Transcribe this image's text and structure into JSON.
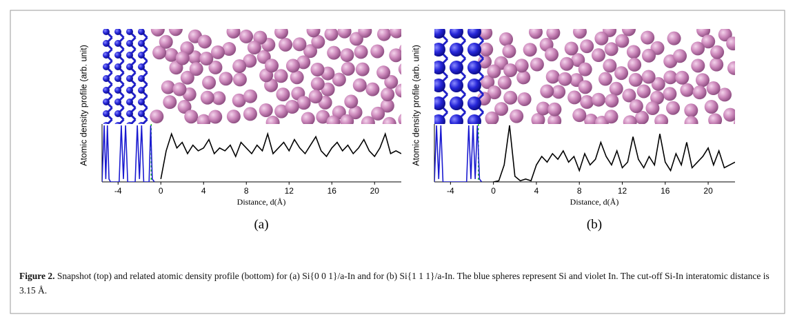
{
  "chart_data": [
    {
      "type": "line",
      "label": "(a)",
      "ylabel": "Atomic density profile (arb. unit)",
      "xlabel": "Distance, d(Å)",
      "xlim": [
        -5.5,
        22.5
      ],
      "xticks": [
        -4,
        0,
        4,
        8,
        12,
        16,
        20
      ],
      "ylim": [
        0,
        1
      ],
      "cutoff_x": -0.9,
      "cutoff_color": "#22cc22",
      "series": [
        {
          "color": "#1a1ad0",
          "x": [
            -5.5,
            -5.3,
            -5.15,
            -5,
            -4.85,
            -4.7,
            -3.9,
            -3.7,
            -3.5,
            -3.3,
            -3.1,
            -2.4,
            -2.2,
            -2.0,
            -1.8,
            -1.6,
            -1.1,
            -0.95,
            -0.8,
            -0.6
          ],
          "values": [
            0,
            1,
            0.05,
            1,
            0.05,
            0,
            0,
            1,
            0.05,
            1,
            0,
            0,
            1,
            0.05,
            1,
            0,
            0,
            1,
            0.05,
            0
          ]
        },
        {
          "color": "#000000",
          "x": [
            0,
            0.5,
            1,
            1.5,
            2,
            2.5,
            3,
            3.5,
            4,
            4.5,
            5,
            5.5,
            6,
            6.5,
            7,
            7.5,
            8,
            8.5,
            9,
            9.5,
            10,
            10.5,
            11,
            11.5,
            12,
            12.5,
            13,
            13.5,
            14,
            14.5,
            15,
            15.5,
            16,
            16.5,
            17,
            17.5,
            18,
            18.5,
            19,
            19.5,
            20,
            20.5,
            21,
            21.5,
            22,
            22.5
          ],
          "values": [
            0.05,
            0.55,
            0.85,
            0.6,
            0.7,
            0.5,
            0.65,
            0.55,
            0.6,
            0.75,
            0.5,
            0.6,
            0.55,
            0.65,
            0.45,
            0.7,
            0.6,
            0.5,
            0.65,
            0.55,
            0.85,
            0.5,
            0.6,
            0.7,
            0.55,
            0.75,
            0.6,
            0.5,
            0.65,
            0.8,
            0.55,
            0.45,
            0.6,
            0.7,
            0.55,
            0.65,
            0.5,
            0.6,
            0.75,
            0.55,
            0.45,
            0.6,
            0.85,
            0.5,
            0.55,
            0.5
          ]
        }
      ]
    },
    {
      "type": "line",
      "label": "(b)",
      "ylabel": "Atomic density profile (arb. unit)",
      "xlabel": "Distance, d(Å)",
      "xlim": [
        -5.5,
        22.5
      ],
      "xticks": [
        -4,
        0,
        4,
        8,
        12,
        16,
        20
      ],
      "ylim": [
        0,
        1
      ],
      "cutoff_x": -1.4,
      "cutoff_color": "#22cc22",
      "series": [
        {
          "color": "#1a1ad0",
          "x": [
            -5.5,
            -5.3,
            -5.1,
            -4.9,
            -4.7,
            -4.5,
            -2.5,
            -2.3,
            -2.1,
            -1.9,
            -1.7,
            -1.5,
            -1.3,
            -1.1
          ],
          "values": [
            0,
            1,
            0.05,
            1,
            0,
            0,
            0,
            1,
            0.05,
            1,
            0.05,
            1,
            0.05,
            0
          ]
        },
        {
          "color": "#000000",
          "x": [
            0,
            0.5,
            1,
            1.5,
            2,
            2.5,
            3,
            3.5,
            4,
            4.5,
            5,
            5.5,
            6,
            6.5,
            7,
            7.5,
            8,
            8.5,
            9,
            9.5,
            10,
            10.5,
            11,
            11.5,
            12,
            12.5,
            13,
            13.5,
            14,
            14.5,
            15,
            15.5,
            16,
            16.5,
            17,
            17.5,
            18,
            18.5,
            19,
            19.5,
            20,
            20.5,
            21,
            21.5,
            22,
            22.5
          ],
          "values": [
            0,
            0.02,
            0.3,
            1,
            0.1,
            0.02,
            0.05,
            0.02,
            0.3,
            0.45,
            0.35,
            0.5,
            0.4,
            0.55,
            0.35,
            0.45,
            0.2,
            0.5,
            0.3,
            0.4,
            0.7,
            0.45,
            0.3,
            0.55,
            0.25,
            0.35,
            0.8,
            0.4,
            0.25,
            0.45,
            0.3,
            0.85,
            0.35,
            0.2,
            0.5,
            0.3,
            0.7,
            0.25,
            0.35,
            0.45,
            0.6,
            0.3,
            0.55,
            0.25,
            0.3,
            0.35
          ]
        }
      ]
    }
  ],
  "caption": {
    "label": "Figure 2.",
    "text": "Snapshot (top) and related atomic density profile (bottom) for (a) Si{0 0 1}/a-In and for (b) Si{1 1 1}/a-In. The blue spheres represent Si and violet In. The cut-off Si-In interatomic distance is 3.15 Å."
  }
}
